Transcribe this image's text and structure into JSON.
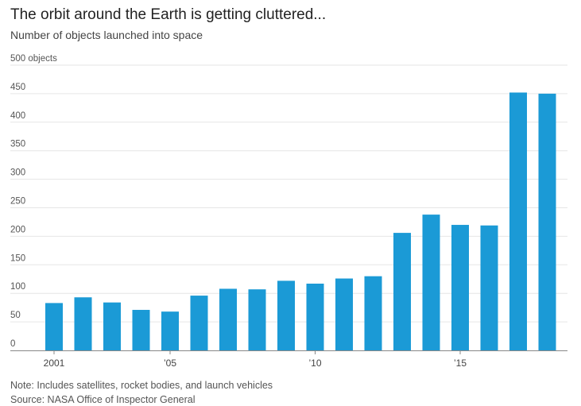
{
  "header": {
    "title": "The orbit around the Earth is getting cluttered...",
    "subtitle": "Number of objects launched into space"
  },
  "footer": {
    "note": "Note: Includes satellites, rocket bodies, and launch vehicles",
    "source": "Source: NASA Office of Inspector General"
  },
  "colors": {
    "bar": "#1b9ad6"
  },
  "chart_data": {
    "type": "bar",
    "title": "The orbit around the Earth is getting cluttered...",
    "subtitle": "Number of objects launched into space",
    "xlabel": "",
    "ylabel": "",
    "ylim": [
      0,
      500
    ],
    "ytick_values": [
      0,
      50,
      100,
      150,
      200,
      250,
      300,
      350,
      400,
      450,
      500
    ],
    "ytick_labels": [
      "0",
      "50",
      "100",
      "150",
      "200",
      "250",
      "300",
      "350",
      "400",
      "450",
      "500 objects"
    ],
    "categories": [
      "2001",
      "2002",
      "2003",
      "2004",
      "2005",
      "2006",
      "2007",
      "2008",
      "2009",
      "2010",
      "2011",
      "2012",
      "2013",
      "2014",
      "2015",
      "2016",
      "2017",
      "2018"
    ],
    "values": [
      83,
      93,
      84,
      71,
      68,
      96,
      108,
      107,
      122,
      117,
      126,
      130,
      206,
      238,
      220,
      219,
      452,
      450
    ],
    "xtick_labels": [
      {
        "category": "2001",
        "label": "2001"
      },
      {
        "category": "2005",
        "label": "’05"
      },
      {
        "category": "2010",
        "label": "’10"
      },
      {
        "category": "2015",
        "label": "’15"
      }
    ],
    "grid": true
  }
}
